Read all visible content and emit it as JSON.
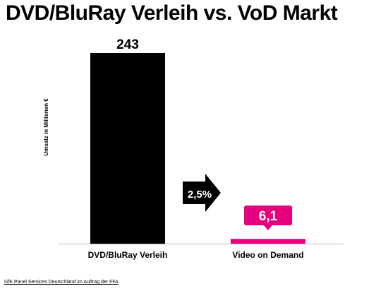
{
  "title": "DVD/BluRay Verleih vs. VoD Markt",
  "chart_data": {
    "type": "bar",
    "ylabel": "Umsatz in Millionen €",
    "categories": [
      "DVD/BluRay Verleih",
      "Video on Demand"
    ],
    "values": [
      243,
      6.1
    ],
    "value_labels": [
      "243",
      "6,1"
    ],
    "ylim": [
      0,
      270
    ],
    "colors": [
      "#000000",
      "#e6007e"
    ],
    "grid": false,
    "legend": "none",
    "annotation": {
      "text": "2,5%",
      "shape": "arrow-right"
    }
  },
  "source": "GfK Panel Services Deutschland im Auftrag der FFA",
  "colors": {
    "accent": "#e6007e",
    "bar_primary": "#000000"
  }
}
